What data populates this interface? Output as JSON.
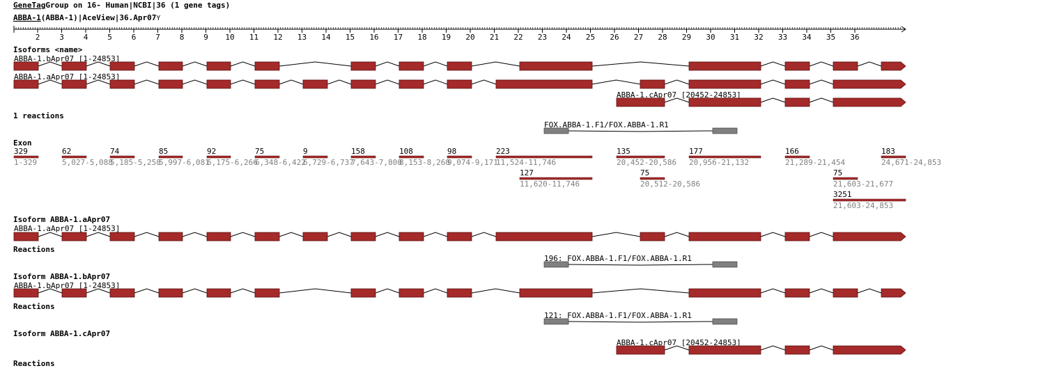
{
  "header": {
    "title_link": "GeneTag",
    "title_rest": "Group on 16- Human|NCBI|36 (1 gene tags)",
    "gene_link": "ABBA-1",
    "gene_rest": "(ABBA-1)|AceView|36.Apr07",
    "menu_glyph": "Y"
  },
  "colors": {
    "exon": "#a52a2a",
    "primer": "#808080",
    "text": "#000000",
    "muted": "#808080",
    "line": "#000000"
  },
  "ruler": {
    "labels": [
      "2",
      "3",
      "4",
      "5",
      "6",
      "7",
      "8",
      "9",
      "10",
      "11",
      "12",
      "13",
      "14",
      "15",
      "16",
      "17",
      "18",
      "19",
      "20",
      "21",
      "22",
      "23",
      "24",
      "25",
      "26",
      "27",
      "28",
      "29",
      "30",
      "31",
      "32",
      "33",
      "34",
      "35",
      "36"
    ]
  },
  "isoforms_section": {
    "title": "Isoforms <name>",
    "isoforms": [
      {
        "label": "ABBA-1.bApr07 [1-24853]"
      },
      {
        "label": "ABBA-1.aApr07 [1-24853]"
      },
      {
        "label": "ABBA-1.cApr07 [20452-24853]"
      }
    ]
  },
  "reactions_section": {
    "title": "1 reactions",
    "primer_label": "FOX.ABBA-1.F1/FOX.ABBA-1.R1"
  },
  "exon_section": {
    "title": "Exon",
    "exons": [
      {
        "length": "329",
        "range": "1-329"
      },
      {
        "length": "62",
        "range": "5,027-5,088"
      },
      {
        "length": "74",
        "range": "5,185-5,258"
      },
      {
        "length": "85",
        "range": "5,997-6,081"
      },
      {
        "length": "92",
        "range": "6,175-6,266"
      },
      {
        "length": "75",
        "range": "6,348-6,422"
      },
      {
        "length": "9",
        "range": "6,729-6,737"
      },
      {
        "length": "158",
        "range": "7,643-7,800"
      },
      {
        "length": "108",
        "range": "8,153-8,260"
      },
      {
        "length": "98",
        "range": "9,074-9,171"
      },
      {
        "length": "223",
        "range": "11,524-11,746"
      },
      {
        "length": "127",
        "range": "11,620-11,746"
      },
      {
        "length": "135",
        "range": "20,452-20,586"
      },
      {
        "length": "75",
        "range": "20,512-20,586"
      },
      {
        "length": "177",
        "range": "20,956-21,132"
      },
      {
        "length": "166",
        "range": "21,289-21,454"
      },
      {
        "length": "75",
        "range": "21,603-21,677"
      },
      {
        "length": "3251",
        "range": "21,603-24,853"
      },
      {
        "length": "183",
        "range": "24,671-24,853"
      }
    ]
  },
  "isoform_details": [
    {
      "title": "Isoform ABBA-1.aApr07",
      "label": "ABBA-1.aApr07 [1-24853]",
      "reactions_title": "Reactions",
      "reaction_label": "196: FOX.ABBA-1.F1/FOX.ABBA-1.R1"
    },
    {
      "title": "Isoform ABBA-1.bApr07",
      "label": "ABBA-1.bApr07 [1-24853]",
      "reactions_title": "Reactions",
      "reaction_label": "121: FOX.ABBA-1.F1/FOX.ABBA-1.R1"
    },
    {
      "title": "Isoform ABBA-1.cApr07",
      "label": "ABBA-1.cApr07 [20452-24853]",
      "reactions_title": "Reactions"
    }
  ]
}
